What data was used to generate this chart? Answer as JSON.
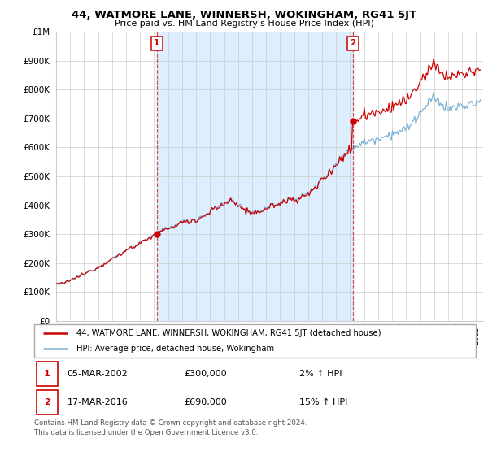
{
  "title": "44, WATMORE LANE, WINNERSH, WOKINGHAM, RG41 5JT",
  "subtitle": "Price paid vs. HM Land Registry's House Price Index (HPI)",
  "ylim": [
    0,
    1000000
  ],
  "xlim_start": 1995.0,
  "xlim_end": 2025.5,
  "ytick_values": [
    0,
    100000,
    200000,
    300000,
    400000,
    500000,
    600000,
    700000,
    800000,
    900000,
    1000000
  ],
  "sale1_x": 2002.18,
  "sale1_y": 300000,
  "sale2_x": 2016.21,
  "sale2_y": 690000,
  "line_color_property": "#cc0000",
  "line_color_hpi": "#7ab0d4",
  "vline_color": "#cc3333",
  "fill_color": "#ddeeff",
  "legend_label_property": "44, WATMORE LANE, WINNERSH, WOKINGHAM, RG41 5JT (detached house)",
  "legend_label_hpi": "HPI: Average price, detached house, Wokingham",
  "sale1_date": "05-MAR-2002",
  "sale1_price": "£300,000",
  "sale1_hpi": "2% ↑ HPI",
  "sale2_date": "17-MAR-2016",
  "sale2_price": "£690,000",
  "sale2_hpi": "15% ↑ HPI",
  "footer": "Contains HM Land Registry data © Crown copyright and database right 2024.\nThis data is licensed under the Open Government Licence v3.0.",
  "grid_color": "#cccccc",
  "background_color": "#ffffff"
}
